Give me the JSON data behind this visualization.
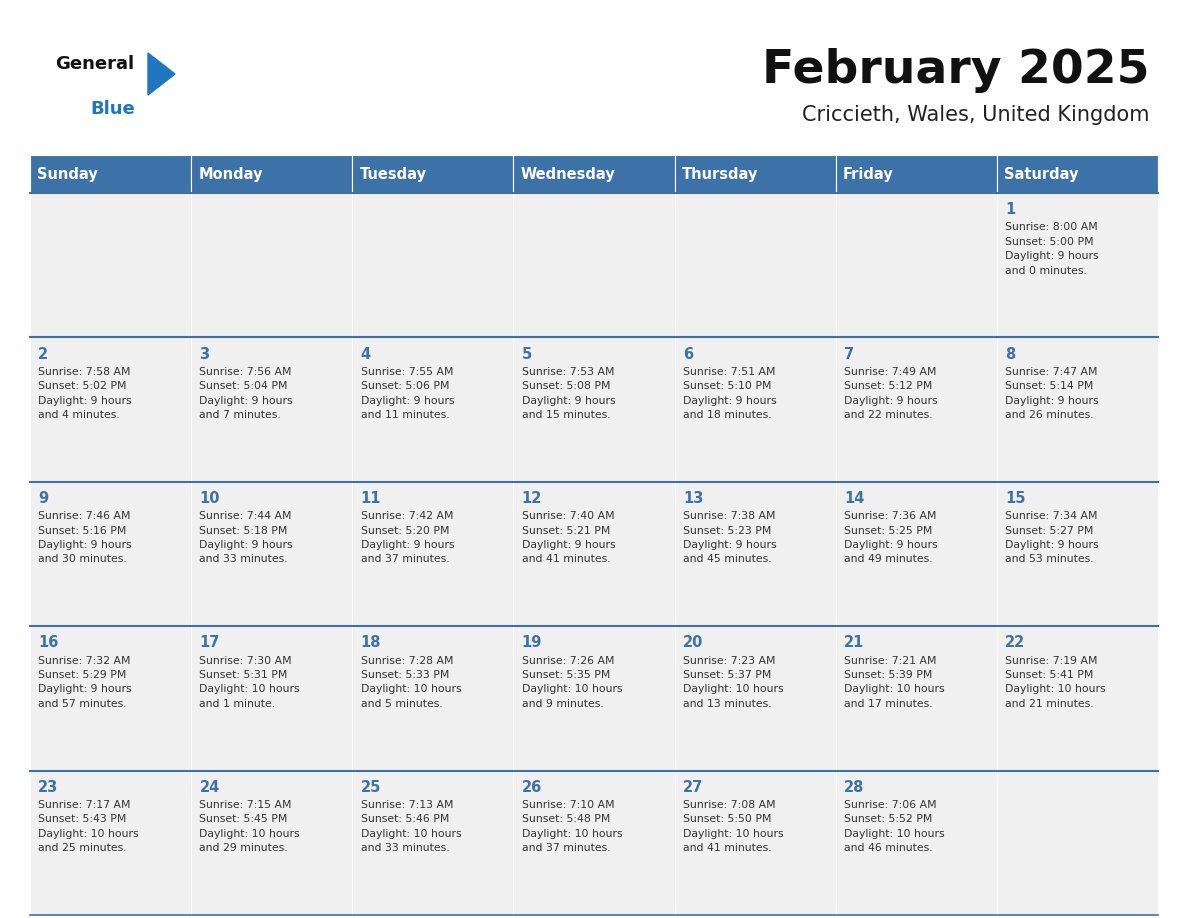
{
  "title": "February 2025",
  "subtitle": "Criccieth, Wales, United Kingdom",
  "days_of_week": [
    "Sunday",
    "Monday",
    "Tuesday",
    "Wednesday",
    "Thursday",
    "Friday",
    "Saturday"
  ],
  "header_bg": "#3d72a8",
  "header_text": "#ffffff",
  "row_bg": "#f0f0f0",
  "cell_border": "#3d72a8",
  "day_num_color": "#3d72a8",
  "info_color": "#333333",
  "title_color": "#111111",
  "subtitle_color": "#222222",
  "logo_general_color": "#111111",
  "logo_blue_color": "#2176c0",
  "logo_triangle_color": "#2176c0",
  "calendar_data": [
    [
      null,
      null,
      null,
      null,
      null,
      null,
      {
        "day": 1,
        "sunrise": "8:00 AM",
        "sunset": "5:00 PM",
        "daylight": "9 hours\nand 0 minutes."
      }
    ],
    [
      {
        "day": 2,
        "sunrise": "7:58 AM",
        "sunset": "5:02 PM",
        "daylight": "9 hours\nand 4 minutes."
      },
      {
        "day": 3,
        "sunrise": "7:56 AM",
        "sunset": "5:04 PM",
        "daylight": "9 hours\nand 7 minutes."
      },
      {
        "day": 4,
        "sunrise": "7:55 AM",
        "sunset": "5:06 PM",
        "daylight": "9 hours\nand 11 minutes."
      },
      {
        "day": 5,
        "sunrise": "7:53 AM",
        "sunset": "5:08 PM",
        "daylight": "9 hours\nand 15 minutes."
      },
      {
        "day": 6,
        "sunrise": "7:51 AM",
        "sunset": "5:10 PM",
        "daylight": "9 hours\nand 18 minutes."
      },
      {
        "day": 7,
        "sunrise": "7:49 AM",
        "sunset": "5:12 PM",
        "daylight": "9 hours\nand 22 minutes."
      },
      {
        "day": 8,
        "sunrise": "7:47 AM",
        "sunset": "5:14 PM",
        "daylight": "9 hours\nand 26 minutes."
      }
    ],
    [
      {
        "day": 9,
        "sunrise": "7:46 AM",
        "sunset": "5:16 PM",
        "daylight": "9 hours\nand 30 minutes."
      },
      {
        "day": 10,
        "sunrise": "7:44 AM",
        "sunset": "5:18 PM",
        "daylight": "9 hours\nand 33 minutes."
      },
      {
        "day": 11,
        "sunrise": "7:42 AM",
        "sunset": "5:20 PM",
        "daylight": "9 hours\nand 37 minutes."
      },
      {
        "day": 12,
        "sunrise": "7:40 AM",
        "sunset": "5:21 PM",
        "daylight": "9 hours\nand 41 minutes."
      },
      {
        "day": 13,
        "sunrise": "7:38 AM",
        "sunset": "5:23 PM",
        "daylight": "9 hours\nand 45 minutes."
      },
      {
        "day": 14,
        "sunrise": "7:36 AM",
        "sunset": "5:25 PM",
        "daylight": "9 hours\nand 49 minutes."
      },
      {
        "day": 15,
        "sunrise": "7:34 AM",
        "sunset": "5:27 PM",
        "daylight": "9 hours\nand 53 minutes."
      }
    ],
    [
      {
        "day": 16,
        "sunrise": "7:32 AM",
        "sunset": "5:29 PM",
        "daylight": "9 hours\nand 57 minutes."
      },
      {
        "day": 17,
        "sunrise": "7:30 AM",
        "sunset": "5:31 PM",
        "daylight": "10 hours\nand 1 minute."
      },
      {
        "day": 18,
        "sunrise": "7:28 AM",
        "sunset": "5:33 PM",
        "daylight": "10 hours\nand 5 minutes."
      },
      {
        "day": 19,
        "sunrise": "7:26 AM",
        "sunset": "5:35 PM",
        "daylight": "10 hours\nand 9 minutes."
      },
      {
        "day": 20,
        "sunrise": "7:23 AM",
        "sunset": "5:37 PM",
        "daylight": "10 hours\nand 13 minutes."
      },
      {
        "day": 21,
        "sunrise": "7:21 AM",
        "sunset": "5:39 PM",
        "daylight": "10 hours\nand 17 minutes."
      },
      {
        "day": 22,
        "sunrise": "7:19 AM",
        "sunset": "5:41 PM",
        "daylight": "10 hours\nand 21 minutes."
      }
    ],
    [
      {
        "day": 23,
        "sunrise": "7:17 AM",
        "sunset": "5:43 PM",
        "daylight": "10 hours\nand 25 minutes."
      },
      {
        "day": 24,
        "sunrise": "7:15 AM",
        "sunset": "5:45 PM",
        "daylight": "10 hours\nand 29 minutes."
      },
      {
        "day": 25,
        "sunrise": "7:13 AM",
        "sunset": "5:46 PM",
        "daylight": "10 hours\nand 33 minutes."
      },
      {
        "day": 26,
        "sunrise": "7:10 AM",
        "sunset": "5:48 PM",
        "daylight": "10 hours\nand 37 minutes."
      },
      {
        "day": 27,
        "sunrise": "7:08 AM",
        "sunset": "5:50 PM",
        "daylight": "10 hours\nand 41 minutes."
      },
      {
        "day": 28,
        "sunrise": "7:06 AM",
        "sunset": "5:52 PM",
        "daylight": "10 hours\nand 46 minutes."
      },
      null
    ]
  ]
}
